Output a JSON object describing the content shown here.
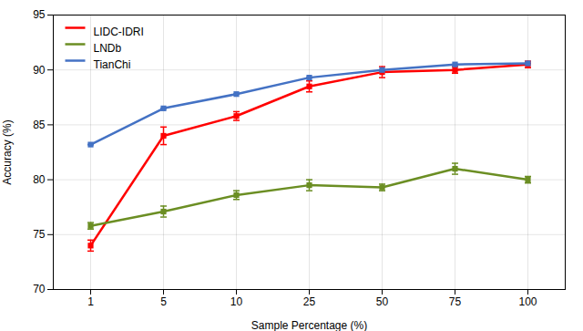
{
  "chart_data": {
    "type": "line",
    "xlabel": "Sample Percentage (%)",
    "ylabel": "Accuracy (%)",
    "categories": [
      "1",
      "5",
      "10",
      "25",
      "50",
      "75",
      "100"
    ],
    "series": [
      {
        "name": "LIDC-IDRI",
        "color": "#FF0000",
        "marker": "square",
        "values": [
          74.0,
          84.0,
          85.8,
          88.5,
          89.8,
          90.0,
          90.5
        ],
        "errors": [
          0.5,
          0.8,
          0.4,
          0.5,
          0.5,
          0.3,
          0.3
        ]
      },
      {
        "name": "LNDb",
        "color": "#6B8E23",
        "marker": "square",
        "values": [
          75.8,
          77.1,
          78.6,
          79.5,
          79.3,
          81.0,
          80.0
        ],
        "errors": [
          0.3,
          0.5,
          0.4,
          0.5,
          0.3,
          0.5,
          0.3
        ]
      },
      {
        "name": "TianChi",
        "color": "#4472C4",
        "marker": "square",
        "values": [
          83.2,
          86.5,
          87.8,
          89.3,
          90.0,
          90.5,
          90.6
        ],
        "errors": [
          0.0,
          0.0,
          0.0,
          0.0,
          0.0,
          0.0,
          0.0
        ]
      }
    ],
    "ylim": [
      70,
      95
    ],
    "yticks": [
      70,
      75,
      80,
      85,
      90,
      95
    ],
    "grid": true,
    "legend": "upper left"
  }
}
